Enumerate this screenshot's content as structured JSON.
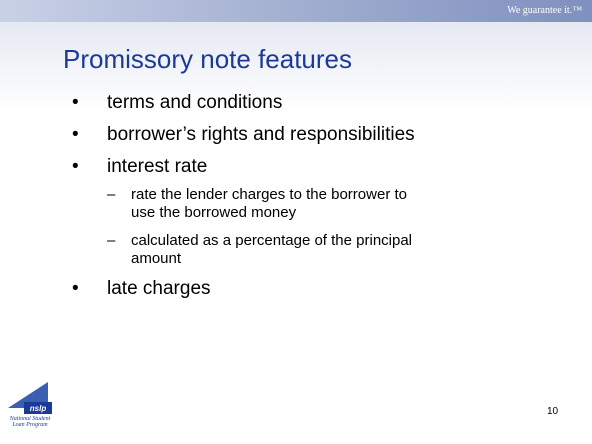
{
  "header": {
    "tagline": "We guarantee it.™",
    "title": "Promissory note features"
  },
  "bullets": [
    {
      "text": "terms and conditions"
    },
    {
      "text": "borrower’s rights and responsibilities"
    },
    {
      "text": "interest rate",
      "sub": [
        "rate the lender charges to the borrower to use the borrowed money",
        "calculated as a percentage of the principal amount"
      ]
    },
    {
      "text": "late charges"
    }
  ],
  "footer": {
    "logo": "nslp",
    "logo_caption": "National Student Loan Program",
    "page": "10"
  }
}
